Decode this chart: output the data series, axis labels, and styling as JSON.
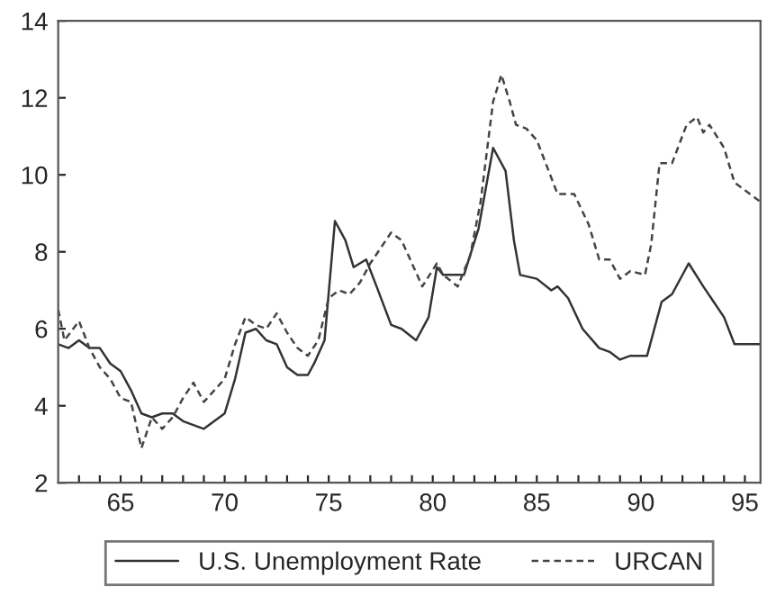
{
  "chart_data": {
    "type": "line",
    "xlim": [
      62,
      95.75
    ],
    "ylim": [
      2,
      14
    ],
    "xticks": [
      {
        "value": 63,
        "label": null
      },
      {
        "value": 64,
        "label": null
      },
      65,
      {
        "value": 66,
        "label": null
      },
      {
        "value": 67,
        "label": null
      },
      {
        "value": 68,
        "label": null
      },
      {
        "value": 69,
        "label": null
      },
      70,
      {
        "value": 71,
        "label": null
      },
      {
        "value": 72,
        "label": null
      },
      {
        "value": 73,
        "label": null
      },
      {
        "value": 74,
        "label": null
      },
      75,
      {
        "value": 76,
        "label": null
      },
      {
        "value": 77,
        "label": null
      },
      {
        "value": 78,
        "label": null
      },
      {
        "value": 79,
        "label": null
      },
      80,
      {
        "value": 81,
        "label": null
      },
      {
        "value": 82,
        "label": null
      },
      {
        "value": 83,
        "label": null
      },
      {
        "value": 84,
        "label": null
      },
      85,
      {
        "value": 86,
        "label": null
      },
      {
        "value": 87,
        "label": null
      },
      {
        "value": 88,
        "label": null
      },
      {
        "value": 89,
        "label": null
      },
      90,
      {
        "value": 91,
        "label": null
      },
      {
        "value": 92,
        "label": null
      },
      {
        "value": 93,
        "label": null
      },
      {
        "value": 94,
        "label": null
      },
      95
    ],
    "yticks": [
      2,
      4,
      6,
      8,
      10,
      12,
      14
    ],
    "grid": false,
    "legend": "bottom",
    "marker": "none",
    "series": [
      {
        "name": "U.S. Unemployment Rate",
        "color": "#333333",
        "line_style": "solid",
        "x": [
          62,
          62.5,
          63,
          63.5,
          64,
          64.5,
          65,
          65.5,
          66,
          66.5,
          67,
          67.5,
          68,
          68.5,
          69,
          69.5,
          70,
          70.5,
          71,
          71.5,
          72,
          72.5,
          73,
          73.5,
          74,
          74.3,
          74.8,
          75.3,
          75.8,
          76.2,
          76.8,
          77.3,
          78,
          78.5,
          79.2,
          79.8,
          80.2,
          80.5,
          81.5,
          82.2,
          82.9,
          83.5,
          83.9,
          84.2,
          85,
          85.7,
          86,
          86.5,
          87.2,
          88,
          88.5,
          89,
          89.5,
          90,
          90.3,
          91,
          91.5,
          92.3,
          93,
          93.5,
          94,
          94.5,
          95,
          95.75
        ],
        "values": [
          5.6,
          5.5,
          5.7,
          5.5,
          5.5,
          5.1,
          4.9,
          4.4,
          3.8,
          3.7,
          3.8,
          3.8,
          3.6,
          3.5,
          3.4,
          3.6,
          3.8,
          4.7,
          5.9,
          6.0,
          5.7,
          5.6,
          5.0,
          4.8,
          4.8,
          5.1,
          5.7,
          8.8,
          8.3,
          7.6,
          7.8,
          7.1,
          6.1,
          6.0,
          5.7,
          6.3,
          7.6,
          7.4,
          7.4,
          8.6,
          10.7,
          10.1,
          8.3,
          7.4,
          7.3,
          7.0,
          7.1,
          6.8,
          6.0,
          5.5,
          5.4,
          5.2,
          5.3,
          5.3,
          5.3,
          6.7,
          6.9,
          7.7,
          7.1,
          6.7,
          6.3,
          5.6,
          5.6,
          5.6
        ]
      },
      {
        "name": "URCAN",
        "color": "#444444",
        "line_style": "dashed",
        "x": [
          62,
          62.3,
          63,
          63.5,
          64,
          64.5,
          65,
          65.5,
          66,
          66.5,
          67,
          67.5,
          68,
          68.5,
          69,
          69.5,
          70,
          70.5,
          71,
          71.5,
          72,
          72.5,
          73,
          73.5,
          74,
          74.5,
          75,
          75.5,
          76,
          76.5,
          77,
          77.5,
          78,
          78.5,
          79,
          79.5,
          80.2,
          80.5,
          81.2,
          81.8,
          82.3,
          82.9,
          83.3,
          83.7,
          84,
          84.5,
          85,
          85.5,
          86,
          86.8,
          87.5,
          88,
          88.5,
          89,
          89.5,
          90.2,
          90.5,
          90.9,
          91.5,
          92.2,
          92.7,
          93,
          93.3,
          94,
          94.5,
          95,
          95.75
        ],
        "values": [
          6.5,
          5.7,
          6.2,
          5.5,
          5.0,
          4.7,
          4.2,
          4.1,
          2.9,
          3.7,
          3.4,
          3.7,
          4.2,
          4.6,
          4.1,
          4.4,
          4.7,
          5.6,
          6.3,
          6.1,
          6.0,
          6.4,
          5.9,
          5.5,
          5.3,
          5.7,
          6.8,
          7.0,
          6.9,
          7.2,
          7.7,
          8.1,
          8.5,
          8.3,
          7.7,
          7.1,
          7.7,
          7.4,
          7.1,
          7.9,
          9.3,
          11.9,
          12.6,
          11.9,
          11.3,
          11.2,
          10.9,
          10.2,
          9.5,
          9.5,
          8.7,
          7.8,
          7.8,
          7.3,
          7.5,
          7.4,
          8.2,
          10.3,
          10.3,
          11.3,
          11.5,
          11.1,
          11.3,
          10.7,
          9.8,
          9.6,
          9.3
        ]
      }
    ]
  }
}
